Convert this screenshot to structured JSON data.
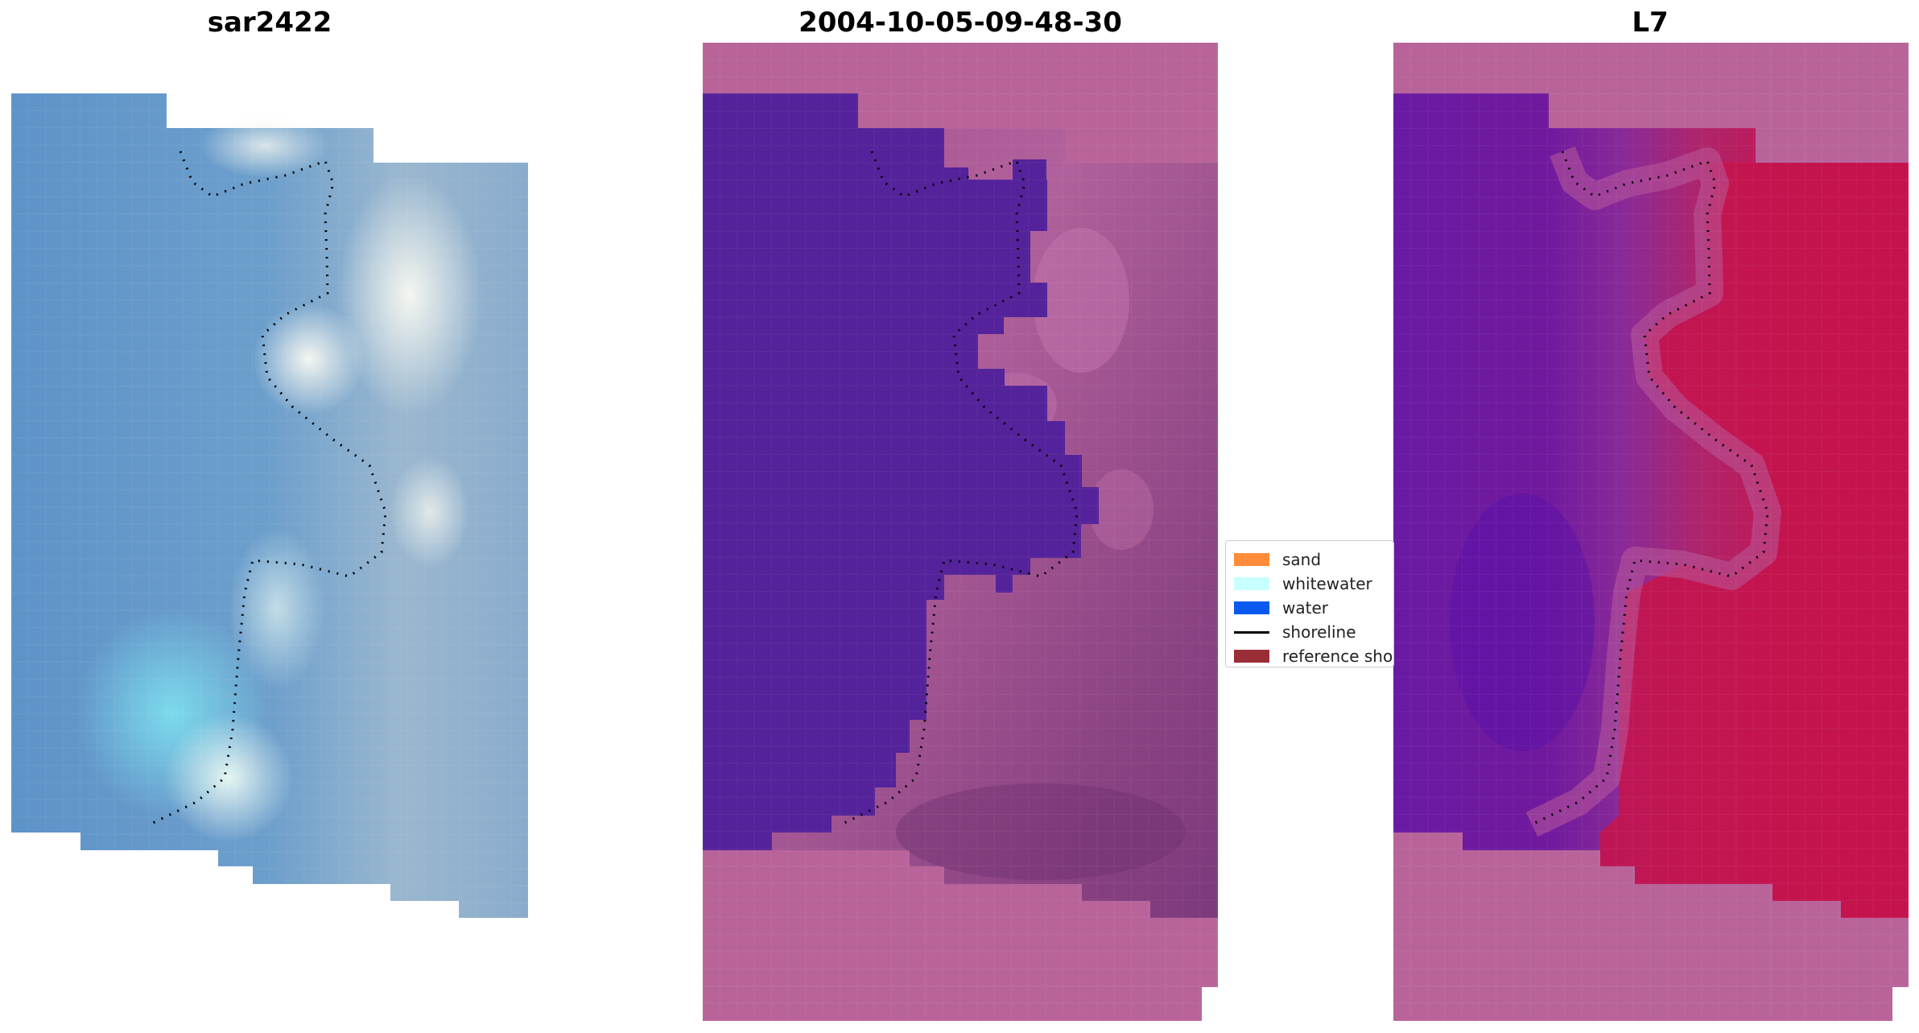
{
  "panels": [
    {
      "title": "sar2422",
      "image": "rgb-composite"
    },
    {
      "title": "2004-10-05-09-48-30",
      "image": "classified-overlay"
    },
    {
      "title": "L7",
      "image": "index-map"
    }
  ],
  "legend": {
    "items": [
      {
        "label": "sand",
        "color": "#ff8c3a",
        "kind": "patch"
      },
      {
        "label": "whitewater",
        "color": "#c8ffff",
        "kind": "patch"
      },
      {
        "label": "water",
        "color": "#0a5af0",
        "kind": "patch"
      },
      {
        "label": "shoreline",
        "color": "#000000",
        "kind": "line"
      },
      {
        "label": "reference shoreline",
        "color": "#9a2e36",
        "kind": "patch"
      }
    ]
  },
  "colors": {
    "nodata_overlay": "#b8649a",
    "water_class": "#54229a",
    "land_purple": "#9a4a8a",
    "index_water": "#6a1aa0",
    "index_land": "#c8124a",
    "rgb_water": "#5b93c8",
    "rgb_bright": "#e8f2f4"
  }
}
